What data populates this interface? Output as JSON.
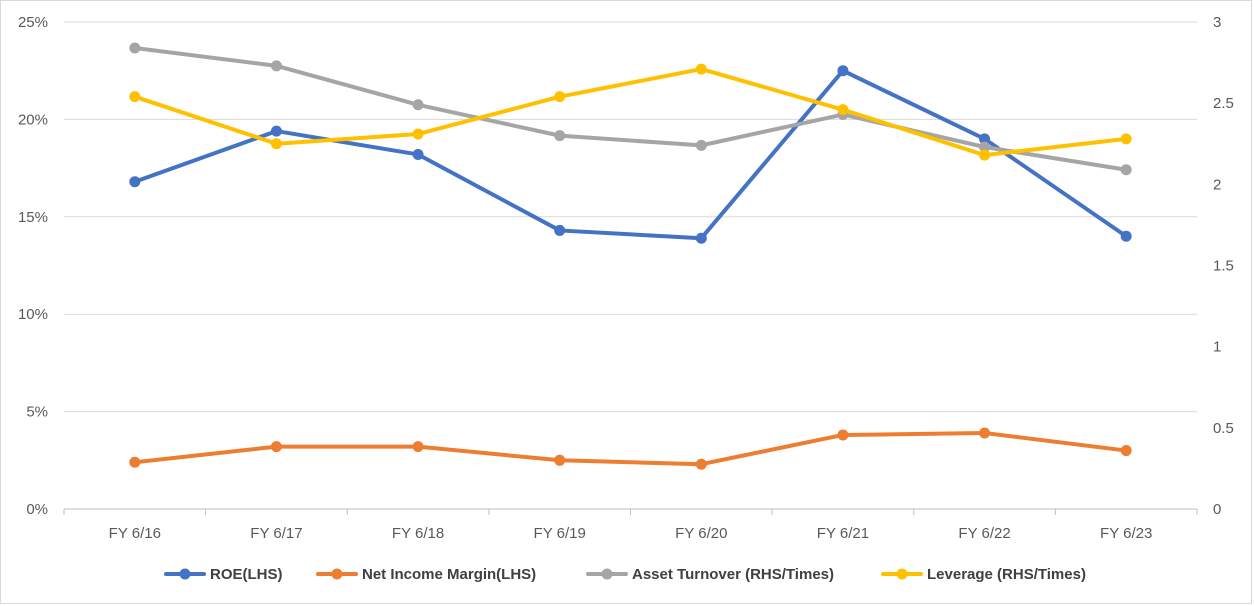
{
  "chart_data": {
    "type": "line",
    "title": "",
    "categories": [
      "FY 6/16",
      "FY 6/17",
      "FY 6/18",
      "FY 6/19",
      "FY 6/20",
      "FY 6/21",
      "FY 6/22",
      "FY 6/23"
    ],
    "left_axis": {
      "range": [
        0,
        0.25
      ],
      "ticks": [
        0,
        0.05,
        0.1,
        0.15,
        0.2,
        0.25
      ],
      "tick_labels": [
        "0%",
        "5%",
        "10%",
        "15%",
        "20%",
        "25%"
      ]
    },
    "right_axis": {
      "range": [
        0,
        3
      ],
      "ticks": [
        0,
        0.5,
        1,
        1.5,
        2,
        2.5,
        3
      ],
      "tick_labels": [
        "0",
        "0.5",
        "1",
        "1.5",
        "2",
        "2.5",
        "3"
      ]
    },
    "series": [
      {
        "name": "ROE(LHS)",
        "axis": "left",
        "color": "#4472C4",
        "values": [
          0.168,
          0.194,
          0.182,
          0.143,
          0.139,
          0.225,
          0.19,
          0.14
        ]
      },
      {
        "name": "Net Income Margin(LHS)",
        "axis": "left",
        "color": "#ED7D31",
        "values": [
          0.024,
          0.032,
          0.032,
          0.025,
          0.023,
          0.038,
          0.039,
          0.03
        ]
      },
      {
        "name": "Asset Turnover (RHS/Times)",
        "axis": "right",
        "color": "#A5A5A5",
        "values": [
          2.84,
          2.73,
          2.49,
          2.3,
          2.24,
          2.43,
          2.23,
          2.09
        ]
      },
      {
        "name": "Leverage (RHS/Times)",
        "axis": "right",
        "color": "#FFC000",
        "values": [
          2.54,
          2.25,
          2.31,
          2.54,
          2.71,
          2.46,
          2.18,
          2.28
        ]
      }
    ],
    "grid": true,
    "legend_position": "bottom"
  }
}
